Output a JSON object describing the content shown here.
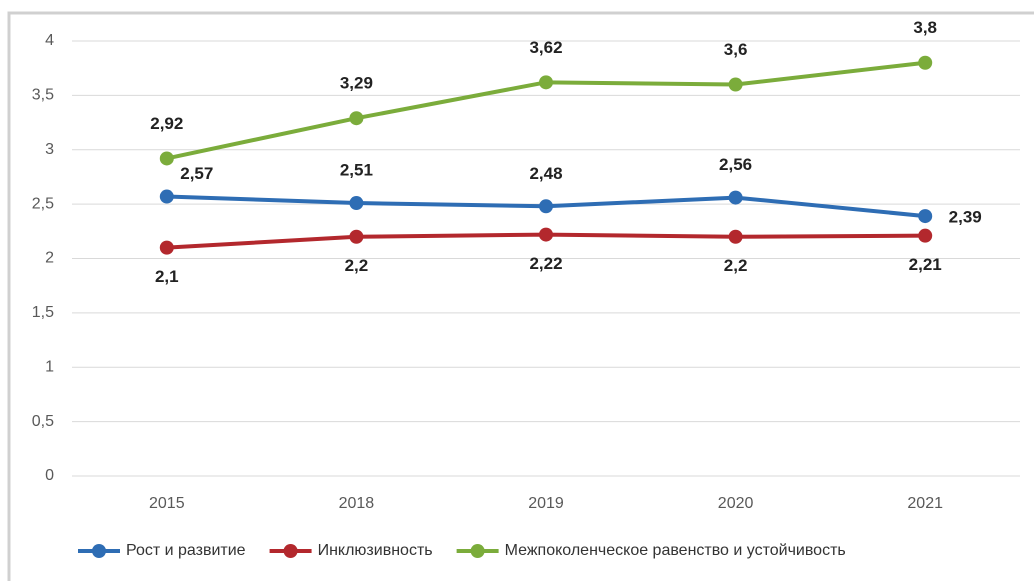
{
  "chart_data": {
    "type": "line",
    "categories": [
      "2015",
      "2018",
      "2019",
      "2020",
      "2021"
    ],
    "series": [
      {
        "name": "Рост и развитие",
        "color": "#2e6db4",
        "values": [
          2.57,
          2.51,
          2.48,
          2.56,
          2.39
        ],
        "value_labels": [
          "2,57",
          "2,51",
          "2,48",
          "2,56",
          "2,39"
        ]
      },
      {
        "name": "Инклюзивность",
        "color": "#b3282d",
        "values": [
          2.1,
          2.2,
          2.22,
          2.2,
          2.21
        ],
        "value_labels": [
          "2,1",
          "2,2",
          "2,22",
          "2,2",
          "2,21"
        ]
      },
      {
        "name": "Межпоколенческое равенство и устойчивость",
        "color": "#7bac3b",
        "values": [
          2.92,
          3.29,
          3.62,
          3.6,
          3.8
        ],
        "value_labels": [
          "2,92",
          "3,29",
          "3,62",
          "3,6",
          "3,8"
        ]
      }
    ],
    "ylim": [
      0,
      4
    ],
    "yticks": [
      0,
      {
        "value": 0.5,
        "label": "0,5"
      },
      1,
      {
        "value": 1.5,
        "label": "1,5"
      },
      2,
      {
        "value": 2.5,
        "label": "2,5"
      },
      3,
      {
        "value": 3.5,
        "label": "3,5"
      },
      4
    ],
    "grid": true,
    "legend": "bottom"
  }
}
